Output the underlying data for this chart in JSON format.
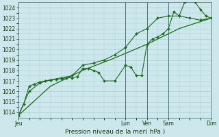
{
  "title": "",
  "xlabel": "Pression niveau de la mer( hPa )",
  "ylabel": "",
  "ylim": [
    1013.5,
    1024.5
  ],
  "xlim": [
    0,
    108
  ],
  "xtick_positions": [
    0,
    60,
    72,
    84,
    108
  ],
  "xtick_labels": [
    "Jeu",
    "Lun",
    "Ven",
    "Sam",
    "Dim"
  ],
  "ytick_positions": [
    1014,
    1015,
    1016,
    1017,
    1018,
    1019,
    1020,
    1021,
    1022,
    1023,
    1024
  ],
  "background_color": "#cce8ec",
  "grid_color": "#aac8cc",
  "line_color": "#1a6b1a",
  "marker_color": "#1a6b1a",
  "line1_x": [
    0,
    3,
    6,
    9,
    12,
    15,
    18,
    21,
    24,
    27,
    30,
    33,
    36,
    39,
    42,
    45,
    48,
    54,
    60,
    63,
    66,
    69,
    72,
    75,
    78,
    81,
    84,
    87,
    90,
    93,
    96,
    99,
    102,
    105,
    108
  ],
  "line1_y": [
    1013.7,
    1014.8,
    1016.5,
    1016.7,
    1016.9,
    1017.0,
    1017.1,
    1017.15,
    1017.2,
    1017.3,
    1017.3,
    1017.4,
    1018.2,
    1018.2,
    1018.0,
    1017.8,
    1017.0,
    1017.0,
    1018.5,
    1018.3,
    1017.5,
    1017.5,
    1020.5,
    1021.0,
    1021.2,
    1021.5,
    1022.0,
    1023.6,
    1023.2,
    1024.5,
    1024.8,
    1024.5,
    1023.8,
    1023.2,
    1023.0
  ],
  "line2_x": [
    0,
    6,
    12,
    18,
    24,
    30,
    36,
    42,
    48,
    54,
    60,
    66,
    72,
    78,
    84,
    90,
    96,
    102,
    108
  ],
  "line2_y": [
    1013.7,
    1016.0,
    1016.8,
    1017.1,
    1017.3,
    1017.5,
    1018.5,
    1018.7,
    1019.0,
    1019.5,
    1020.2,
    1021.5,
    1022.0,
    1023.0,
    1023.2,
    1023.2,
    1023.0,
    1022.8,
    1023.0
  ],
  "line3_x": [
    0,
    18,
    36,
    54,
    72,
    90,
    108
  ],
  "line3_y": [
    1013.7,
    1016.5,
    1018.0,
    1019.2,
    1020.5,
    1022.0,
    1023.0
  ],
  "vline_positions": [
    0,
    60,
    72,
    84,
    108
  ],
  "fig_bg": "#cce8ec"
}
